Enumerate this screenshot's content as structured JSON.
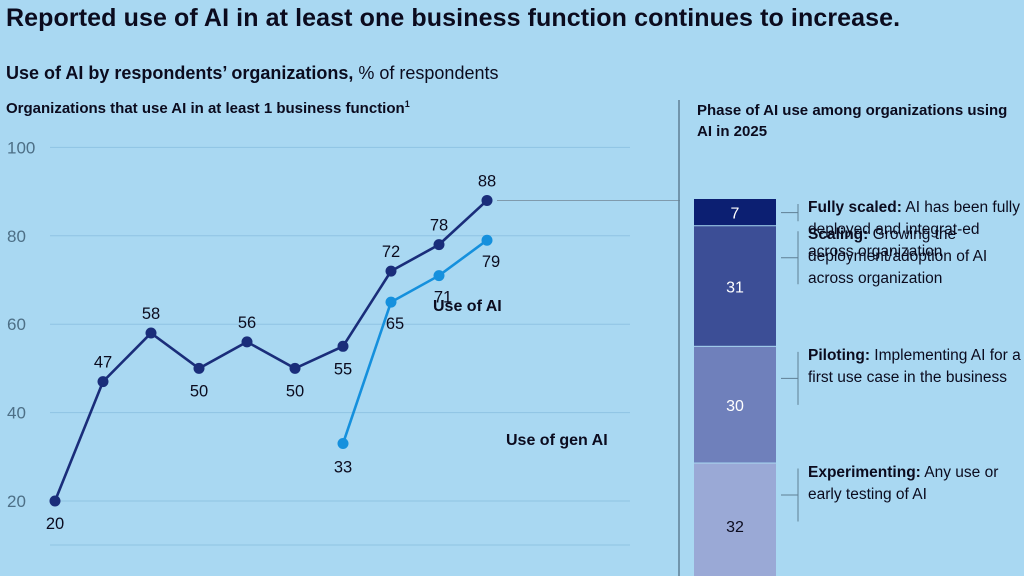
{
  "title": "Reported use of AI in at least one business function continues to increase.",
  "subtitle_bold": "Use of AI by respondents’ organizations,",
  "subtitle_rest": " % of respondents",
  "left_heading": "Organizations that use AI in at least 1 business function",
  "left_heading_footnote": "1",
  "right_heading": "Phase of AI use among organizations using AI in 2025",
  "colors": {
    "background": "#a9d8f2",
    "ai_line": "#1a2d7a",
    "gen_ai_line": "#1590dd",
    "grid": "#8fc3e3",
    "divider": "#5f7f94"
  },
  "chart_data": [
    {
      "type": "line",
      "ylim": [
        20,
        100
      ],
      "y_ticks": [
        20,
        40,
        60,
        80,
        100
      ],
      "grid": true,
      "series": [
        {
          "name": "Use of AI",
          "values": [
            20,
            47,
            58,
            50,
            56,
            50,
            55,
            72,
            78,
            88
          ],
          "labels": [
            "20",
            "47",
            "58",
            "50",
            "56",
            "50",
            "55",
            "72",
            "78",
            "88"
          ]
        },
        {
          "name": "Use of gen AI",
          "start_index": 6,
          "values": [
            33,
            65,
            71,
            79
          ],
          "labels": [
            "33",
            "65",
            "71",
            "79"
          ]
        }
      ]
    },
    {
      "type": "bar",
      "stacked": true,
      "segments": [
        {
          "value": 7,
          "label": "7",
          "bold": "Fully scaled:",
          "text": " AI has been fully deployed and integrat-ed across organization",
          "color": "#0c1f72"
        },
        {
          "value": 31,
          "label": "31",
          "bold": "Scaling:",
          "text": " Growing the deployment/adoption of AI across organization",
          "color": "#3c4e96"
        },
        {
          "value": 30,
          "label": "30",
          "bold": "Piloting:",
          "text": " Implementing AI for a first use case in the business",
          "color": "#6f80bb"
        },
        {
          "value": 32,
          "label": "32",
          "bold": "Experimenting:",
          "text": " Any use or early testing of AI",
          "color": "#9aa9d6"
        }
      ]
    }
  ]
}
